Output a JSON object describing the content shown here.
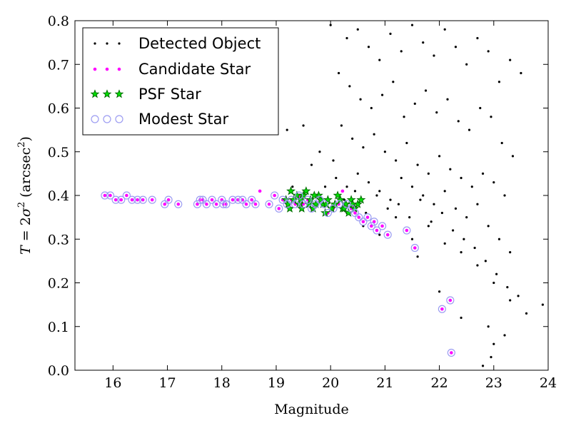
{
  "chart_data": {
    "type": "scatter",
    "xlabel": "Magnitude",
    "ylabel_parts": [
      "T",
      " = 2",
      "σ",
      "2",
      " (arcsec",
      "2",
      ")"
    ],
    "xlim": [
      15.3,
      24
    ],
    "ylim": [
      0.0,
      0.8
    ],
    "x_ticks": [
      "16",
      "17",
      "18",
      "19",
      "20",
      "21",
      "22",
      "23",
      "24"
    ],
    "y_ticks": [
      "0.0",
      "0.1",
      "0.2",
      "0.3",
      "0.4",
      "0.5",
      "0.6",
      "0.7",
      "0.8"
    ],
    "grid": false,
    "legend_position": "top-left",
    "legend": [
      {
        "label": "Detected Object",
        "marker": "dot",
        "color": "#000000"
      },
      {
        "label": "Candidate Star",
        "marker": "small-circle",
        "color": "#ff00ff"
      },
      {
        "label": "PSF Star",
        "marker": "star",
        "color": "#00aa00"
      },
      {
        "label": "Modest Star",
        "marker": "open-circle",
        "color": "#9c9cf2"
      }
    ],
    "series": [
      {
        "name": "Detected Object",
        "x": [
          15.85,
          15.95,
          16.05,
          16.15,
          16.25,
          16.35,
          16.45,
          16.55,
          16.72,
          16.95,
          17.02,
          17.2,
          17.55,
          17.6,
          17.65,
          17.72,
          17.82,
          17.9,
          18.0,
          18.03,
          18.08,
          18.2,
          18.3,
          18.38,
          18.45,
          18.55,
          18.62,
          18.7,
          18.87,
          18.97,
          19.05,
          19.12,
          19.2,
          19.28,
          19.35,
          19.42,
          19.5,
          19.58,
          19.65,
          19.72,
          19.8,
          19.88,
          19.95,
          20.05,
          20.15,
          20.22,
          20.3,
          20.38,
          20.45,
          20.52,
          20.6,
          20.68,
          20.75,
          20.8,
          20.85,
          20.95,
          21.05,
          21.4,
          21.55,
          22.05,
          22.2,
          22.22,
          20.0,
          20.3,
          20.5,
          20.7,
          20.9,
          21.1,
          21.3,
          21.5,
          21.7,
          21.9,
          22.1,
          22.3,
          22.5,
          22.7,
          22.9,
          23.1,
          23.3,
          23.5,
          19.5,
          19.2,
          20.15,
          20.35,
          20.55,
          20.75,
          20.95,
          21.15,
          21.35,
          21.55,
          21.75,
          21.95,
          22.15,
          22.35,
          22.55,
          22.75,
          22.95,
          23.15,
          23.35,
          19.8,
          20.2,
          20.4,
          20.6,
          20.8,
          21.0,
          21.2,
          21.4,
          21.6,
          21.8,
          22.0,
          22.2,
          22.4,
          22.6,
          22.8,
          23.0,
          23.2,
          19.65,
          20.1,
          20.3,
          20.5,
          20.7,
          20.9,
          21.1,
          21.3,
          21.5,
          21.7,
          21.9,
          22.1,
          22.3,
          22.5,
          22.7,
          22.9,
          23.1,
          23.3,
          19.9,
          20.25,
          20.45,
          20.65,
          20.85,
          21.05,
          21.25,
          21.45,
          21.65,
          21.85,
          22.05,
          22.25,
          22.45,
          22.65,
          22.85,
          23.05,
          23.25,
          23.45,
          19.3,
          20.05,
          20.3,
          20.6,
          20.9,
          21.2,
          21.5,
          21.8,
          22.1,
          22.4,
          22.7,
          23.0,
          23.3,
          23.6,
          23.9,
          22.9,
          23.0,
          22.95,
          23.2,
          22.8,
          22.4,
          22.0,
          21.6
        ],
        "y": [
          0.4,
          0.4,
          0.39,
          0.39,
          0.4,
          0.39,
          0.39,
          0.39,
          0.39,
          0.38,
          0.39,
          0.38,
          0.38,
          0.39,
          0.39,
          0.38,
          0.39,
          0.38,
          0.39,
          0.38,
          0.38,
          0.39,
          0.39,
          0.39,
          0.38,
          0.39,
          0.38,
          0.41,
          0.38,
          0.4,
          0.37,
          0.39,
          0.38,
          0.39,
          0.38,
          0.4,
          0.38,
          0.39,
          0.37,
          0.38,
          0.39,
          0.38,
          0.36,
          0.37,
          0.38,
          0.37,
          0.38,
          0.37,
          0.36,
          0.35,
          0.34,
          0.35,
          0.33,
          0.34,
          0.32,
          0.33,
          0.31,
          0.32,
          0.28,
          0.14,
          0.16,
          0.04,
          0.79,
          0.76,
          0.78,
          0.74,
          0.71,
          0.77,
          0.73,
          0.79,
          0.75,
          0.72,
          0.78,
          0.74,
          0.7,
          0.76,
          0.73,
          0.66,
          0.71,
          0.68,
          0.56,
          0.55,
          0.68,
          0.65,
          0.62,
          0.6,
          0.63,
          0.66,
          0.58,
          0.61,
          0.64,
          0.59,
          0.62,
          0.57,
          0.55,
          0.6,
          0.58,
          0.52,
          0.49,
          0.5,
          0.56,
          0.53,
          0.51,
          0.54,
          0.5,
          0.48,
          0.52,
          0.47,
          0.45,
          0.49,
          0.46,
          0.44,
          0.42,
          0.45,
          0.43,
          0.4,
          0.47,
          0.44,
          0.42,
          0.45,
          0.43,
          0.41,
          0.39,
          0.44,
          0.42,
          0.4,
          0.38,
          0.41,
          0.37,
          0.35,
          0.38,
          0.33,
          0.3,
          0.27,
          0.42,
          0.39,
          0.41,
          0.36,
          0.4,
          0.37,
          0.38,
          0.35,
          0.39,
          0.34,
          0.36,
          0.32,
          0.3,
          0.28,
          0.25,
          0.22,
          0.19,
          0.17,
          0.42,
          0.48,
          0.36,
          0.33,
          0.31,
          0.35,
          0.3,
          0.33,
          0.29,
          0.27,
          0.24,
          0.2,
          0.16,
          0.13,
          0.15,
          0.1,
          0.06,
          0.03,
          0.08,
          0.01,
          0.12,
          0.18,
          0.26
        ],
        "color": "#000000"
      },
      {
        "name": "Candidate Star",
        "x": [
          15.85,
          15.95,
          16.05,
          16.15,
          16.25,
          16.35,
          16.45,
          16.55,
          16.72,
          16.95,
          17.02,
          17.2,
          17.55,
          17.6,
          17.65,
          17.72,
          17.82,
          17.9,
          18.0,
          18.03,
          18.08,
          18.2,
          18.3,
          18.38,
          18.45,
          18.55,
          18.62,
          18.7,
          18.87,
          18.97,
          19.05,
          19.12,
          19.2,
          19.28,
          19.35,
          19.42,
          19.5,
          19.58,
          19.65,
          19.72,
          19.8,
          19.88,
          19.95,
          20.05,
          20.15,
          20.22,
          20.3,
          20.38,
          20.45,
          20.52,
          20.6,
          20.68,
          20.75,
          20.8,
          20.85,
          20.95,
          21.05,
          21.4,
          21.55,
          22.05,
          22.2,
          22.22
        ],
        "y": [
          0.4,
          0.4,
          0.39,
          0.39,
          0.4,
          0.39,
          0.39,
          0.39,
          0.39,
          0.38,
          0.39,
          0.38,
          0.38,
          0.39,
          0.39,
          0.38,
          0.39,
          0.38,
          0.39,
          0.38,
          0.38,
          0.39,
          0.39,
          0.39,
          0.38,
          0.39,
          0.38,
          0.41,
          0.38,
          0.4,
          0.37,
          0.39,
          0.38,
          0.39,
          0.38,
          0.4,
          0.38,
          0.39,
          0.37,
          0.38,
          0.39,
          0.38,
          0.36,
          0.37,
          0.38,
          0.41,
          0.38,
          0.37,
          0.36,
          0.35,
          0.34,
          0.35,
          0.33,
          0.34,
          0.32,
          0.33,
          0.31,
          0.32,
          0.28,
          0.14,
          0.16,
          0.04
        ],
        "color": "#ff00ff"
      },
      {
        "name": "PSF Star",
        "x": [
          19.18,
          19.22,
          19.27,
          19.32,
          19.38,
          19.42,
          19.47,
          19.5,
          19.55,
          19.6,
          19.63,
          19.68,
          19.73,
          19.78,
          19.82,
          19.86,
          19.9,
          19.95,
          20.02,
          20.08,
          20.13,
          20.18,
          20.22,
          20.28,
          20.33,
          20.38,
          20.44,
          20.5,
          20.56,
          19.25,
          19.45,
          19.7,
          19.92,
          20.25,
          20.4
        ],
        "y": [
          0.39,
          0.38,
          0.41,
          0.39,
          0.4,
          0.38,
          0.37,
          0.4,
          0.41,
          0.38,
          0.39,
          0.37,
          0.38,
          0.4,
          0.39,
          0.38,
          0.36,
          0.39,
          0.37,
          0.38,
          0.4,
          0.39,
          0.37,
          0.38,
          0.36,
          0.39,
          0.37,
          0.38,
          0.39,
          0.37,
          0.39,
          0.4,
          0.38,
          0.37,
          0.38
        ],
        "color": "#00aa00"
      },
      {
        "name": "Modest Star",
        "x": [
          15.85,
          15.95,
          16.05,
          16.15,
          16.25,
          16.35,
          16.45,
          16.55,
          16.72,
          16.95,
          17.02,
          17.2,
          17.55,
          17.6,
          17.65,
          17.72,
          17.82,
          17.9,
          18.0,
          18.03,
          18.08,
          18.2,
          18.3,
          18.38,
          18.45,
          18.55,
          18.62,
          18.87,
          18.97,
          19.05,
          19.12,
          19.2,
          19.28,
          19.35,
          19.42,
          19.5,
          19.58,
          19.65,
          19.72,
          19.8,
          19.88,
          19.95,
          20.05,
          20.15,
          20.3,
          20.38,
          20.45,
          20.52,
          20.6,
          20.68,
          20.75,
          20.8,
          20.85,
          20.95,
          21.05,
          21.4,
          21.55,
          22.05,
          22.2,
          22.22
        ],
        "y": [
          0.4,
          0.4,
          0.39,
          0.39,
          0.4,
          0.39,
          0.39,
          0.39,
          0.39,
          0.38,
          0.39,
          0.38,
          0.38,
          0.39,
          0.39,
          0.38,
          0.39,
          0.38,
          0.39,
          0.38,
          0.38,
          0.39,
          0.39,
          0.39,
          0.38,
          0.39,
          0.38,
          0.38,
          0.4,
          0.37,
          0.39,
          0.38,
          0.39,
          0.38,
          0.4,
          0.38,
          0.39,
          0.37,
          0.38,
          0.39,
          0.38,
          0.36,
          0.37,
          0.38,
          0.38,
          0.37,
          0.36,
          0.35,
          0.34,
          0.35,
          0.33,
          0.34,
          0.32,
          0.33,
          0.31,
          0.32,
          0.28,
          0.14,
          0.16,
          0.04
        ],
        "color": "#9c9cf2"
      }
    ]
  }
}
